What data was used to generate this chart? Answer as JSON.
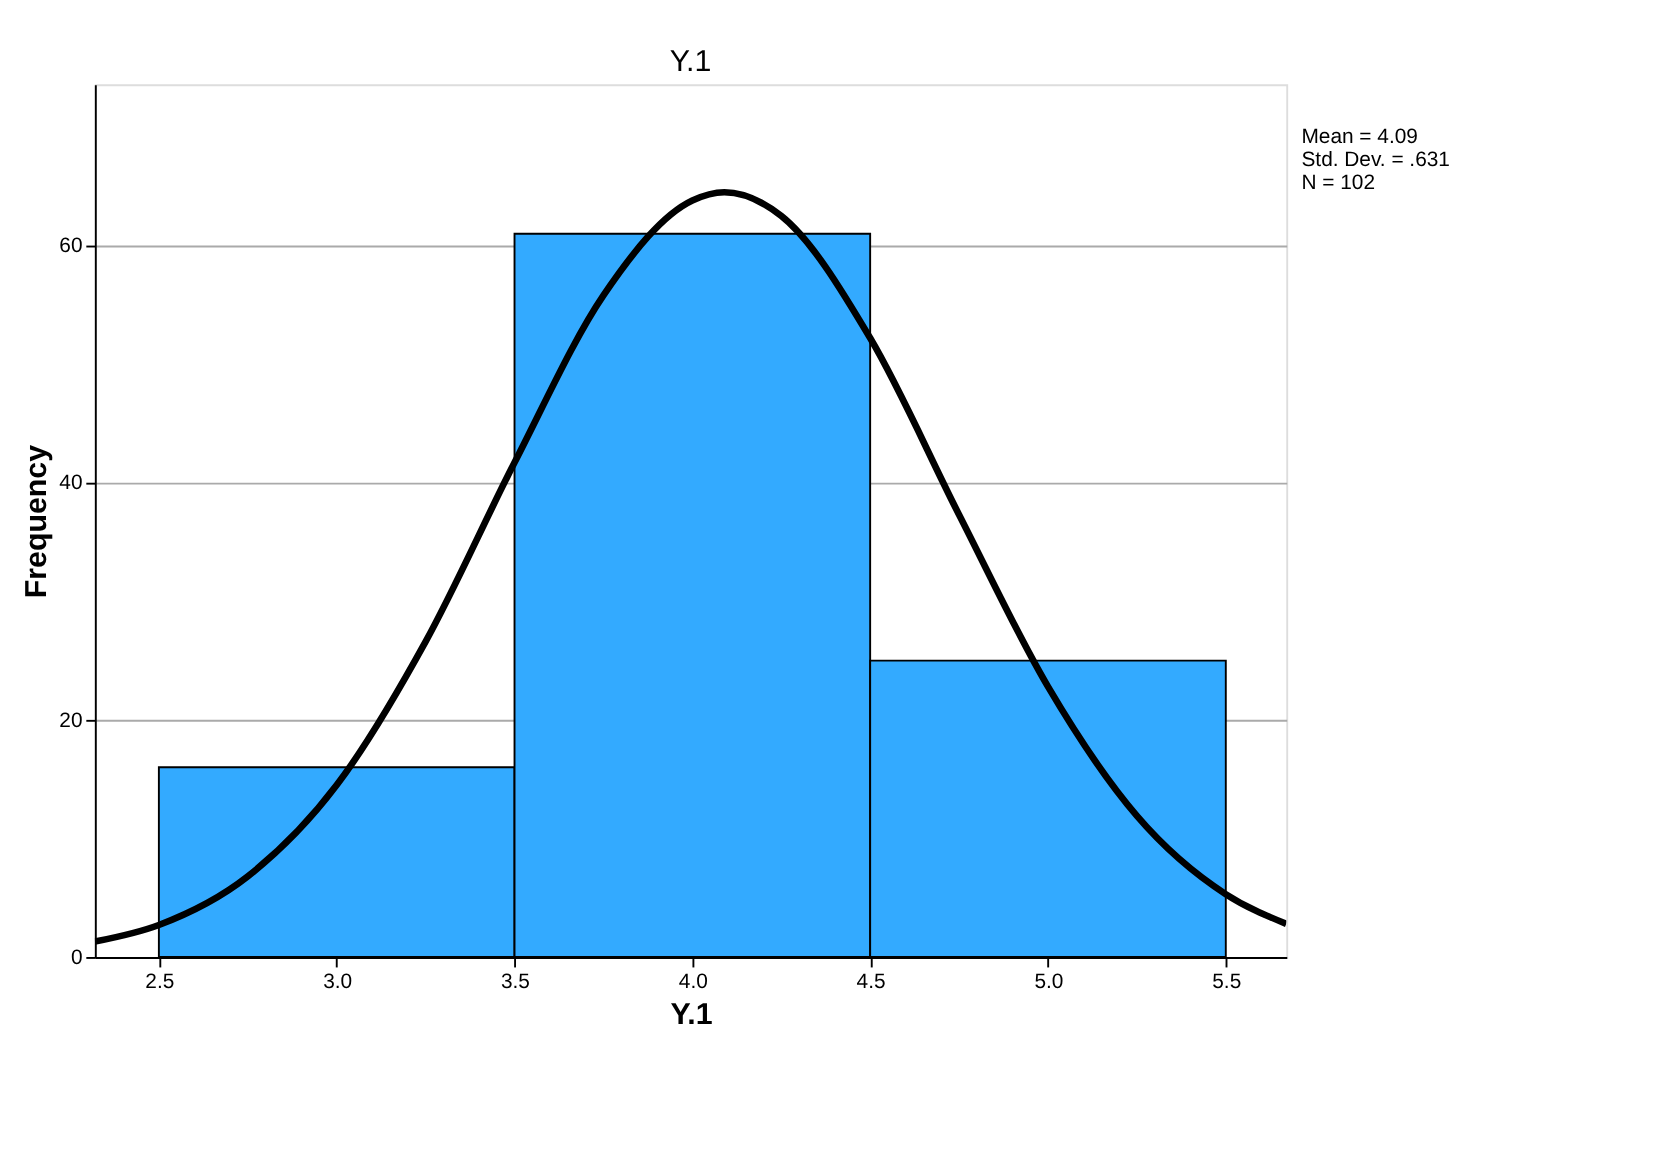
{
  "chart_data": {
    "type": "histogram",
    "title": "Y.1",
    "xlabel": "Y.1",
    "ylabel": "Frequency",
    "bins": [
      2.5,
      3.5,
      4.5,
      5.5
    ],
    "values": [
      16,
      61,
      25
    ],
    "color": "#33aaff",
    "xlim": [
      2.32,
      5.67
    ],
    "xticks": [
      {
        "value": 2.5,
        "label": "2.5"
      },
      {
        "value": 3.0,
        "label": "3.0"
      },
      {
        "value": 3.5,
        "label": "3.5"
      },
      {
        "value": 4.0,
        "label": "4.0"
      },
      {
        "value": 4.5,
        "label": "4.5"
      },
      {
        "value": 5.0,
        "label": "5.0"
      },
      {
        "value": 5.5,
        "label": "5.5"
      }
    ],
    "ylim": [
      0,
      73.6
    ],
    "yticks": [
      0,
      20,
      40,
      60
    ],
    "grid": "y",
    "series": [
      {
        "type": "line",
        "color": "#000000",
        "x": [
          2.32,
          2.5,
          2.75,
          3.0,
          3.25,
          3.5,
          3.75,
          4.0,
          4.09,
          4.25,
          4.5,
          4.75,
          5.0,
          5.25,
          5.5,
          5.67
        ],
        "values": [
          1.3,
          2.7,
          6.8,
          14.5,
          26.6,
          41.7,
          55.8,
          63.8,
          64.5,
          62.5,
          52.2,
          37.3,
          22.8,
          11.9,
          5.3,
          2.8
        ]
      }
    ],
    "annotations": [
      "Mean = 4.09",
      "Std. Dev. = .631",
      "N = 102"
    ]
  }
}
